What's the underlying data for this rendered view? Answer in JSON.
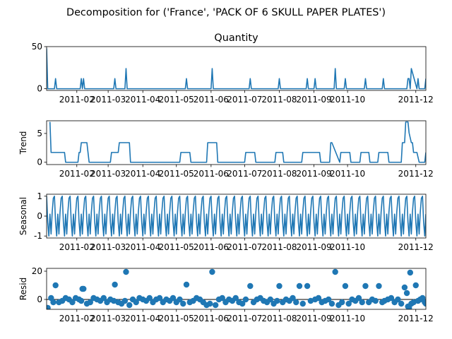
{
  "figure": {
    "suptitle": "Decomposition for ('France', 'PACK OF 6 SKULL PAPER PLATES')",
    "line_color": "#1f77b4",
    "dot_color": "#1f77b4"
  },
  "chart_data": [
    {
      "type": "line",
      "title": "Quantity",
      "ylabel": "",
      "ylim": [
        -2,
        50
      ],
      "yticks": [
        0,
        50
      ],
      "xlim": [
        "2011-01-05",
        "2011-12-10"
      ],
      "xticks": [
        "2011-02",
        "2011-03",
        "2011-04",
        "2011-05",
        "2011-06",
        "2011-07",
        "2011-08",
        "2011-09",
        "2011-10",
        "2011-12"
      ],
      "series": [
        {
          "x": [
            "2011-01-05",
            "2011-01-06",
            "2011-01-12",
            "2011-01-13",
            "2011-01-14",
            "2011-02-04",
            "2011-02-05",
            "2011-02-06",
            "2011-02-07",
            "2011-02-08",
            "2011-03-06",
            "2011-03-07",
            "2011-03-08",
            "2011-03-16",
            "2011-03-17",
            "2011-03-18",
            "2011-05-09",
            "2011-05-10",
            "2011-05-11",
            "2011-06-01",
            "2011-06-02",
            "2011-06-03",
            "2011-07-05",
            "2011-07-06",
            "2011-07-07",
            "2011-07-31",
            "2011-08-01",
            "2011-08-02",
            "2011-08-25",
            "2011-08-26",
            "2011-08-27",
            "2011-09-01",
            "2011-09-02",
            "2011-09-03",
            "2011-09-19",
            "2011-09-20",
            "2011-09-21",
            "2011-09-28",
            "2011-09-29",
            "2011-09-30",
            "2011-10-16",
            "2011-10-17",
            "2011-10-18",
            "2011-11-01",
            "2011-11-02",
            "2011-11-03",
            "2011-11-23",
            "2011-11-24",
            "2011-11-25",
            "2011-11-26",
            "2011-11-27",
            "2011-12-02",
            "2011-12-03",
            "2011-12-04",
            "2011-12-09",
            "2011-12-10"
          ],
          "values": [
            48,
            0,
            0,
            12,
            0,
            0,
            12,
            0,
            12,
            0,
            0,
            12,
            0,
            0,
            24,
            0,
            0,
            12,
            0,
            0,
            24,
            0,
            0,
            12,
            0,
            0,
            12,
            0,
            0,
            12,
            0,
            0,
            12,
            0,
            0,
            24,
            0,
            0,
            12,
            0,
            0,
            12,
            0,
            0,
            12,
            0,
            0,
            12,
            12,
            0,
            24,
            0,
            12,
            0,
            0,
            12
          ]
        }
      ]
    },
    {
      "type": "line",
      "title": "",
      "ylabel": "Trend",
      "ylim": [
        -0.4,
        7.2
      ],
      "yticks": [
        0,
        5
      ],
      "xlim": [
        "2011-01-05",
        "2011-12-10"
      ],
      "xticks": [
        "2011-02",
        "2011-03",
        "2011-04",
        "2011-05",
        "2011-06",
        "2011-07",
        "2011-08",
        "2011-09",
        "2011-10",
        "2011-12"
      ],
      "series": [
        {
          "x": [
            "2011-01-08",
            "2011-01-09",
            "2011-01-11",
            "2011-01-12",
            "2011-01-21",
            "2011-01-22",
            "2011-02-02",
            "2011-02-03",
            "2011-02-04",
            "2011-02-05",
            "2011-02-10",
            "2011-02-11",
            "2011-02-12",
            "2011-03-03",
            "2011-03-04",
            "2011-03-10",
            "2011-03-11",
            "2011-03-12",
            "2011-03-20",
            "2011-03-21",
            "2011-03-22",
            "2011-05-04",
            "2011-05-05",
            "2011-05-13",
            "2011-05-14",
            "2011-05-28",
            "2011-05-29",
            "2011-06-06",
            "2011-06-07",
            "2011-07-01",
            "2011-07-02",
            "2011-07-10",
            "2011-07-11",
            "2011-07-28",
            "2011-07-29",
            "2011-08-04",
            "2011-08-05",
            "2011-08-21",
            "2011-08-22",
            "2011-09-06",
            "2011-09-07",
            "2011-09-15",
            "2011-09-16",
            "2011-09-17",
            "2011-09-24",
            "2011-09-25",
            "2011-10-03",
            "2011-10-04",
            "2011-10-12",
            "2011-10-13",
            "2011-10-20",
            "2011-10-21",
            "2011-10-28",
            "2011-10-29",
            "2011-11-06",
            "2011-11-07",
            "2011-11-18",
            "2011-11-19",
            "2011-11-21",
            "2011-11-22",
            "2011-11-24",
            "2011-11-25",
            "2011-11-27",
            "2011-11-28",
            "2011-11-29",
            "2011-12-01",
            "2011-12-02",
            "2011-12-04",
            "2011-12-05",
            "2011-12-09",
            "2011-12-10"
          ],
          "values": [
            7,
            1.7,
            1.7,
            1.7,
            1.7,
            0,
            0,
            1.7,
            1.7,
            3.4,
            3.4,
            1.7,
            0,
            0,
            1.7,
            1.7,
            3.4,
            3.4,
            3.4,
            0,
            0,
            0,
            1.7,
            1.7,
            0,
            0,
            3.4,
            3.4,
            0,
            0,
            1.7,
            1.7,
            0,
            0,
            1.7,
            1.7,
            0,
            0,
            1.7,
            1.7,
            0,
            0,
            3.4,
            3.4,
            0,
            1.7,
            1.7,
            0,
            0,
            1.7,
            1.7,
            0,
            0,
            1.7,
            1.7,
            0,
            0,
            3.4,
            3.4,
            7,
            7,
            5.1,
            3.4,
            3.4,
            1.7,
            1.7,
            1.7,
            0,
            0,
            0,
            1.7
          ]
        }
      ]
    },
    {
      "type": "line",
      "title": "",
      "ylabel": "Seasonal",
      "ylim": [
        -1.1,
        1.1
      ],
      "yticks": [
        -1,
        0,
        1
      ],
      "xlim": [
        "2011-01-05",
        "2011-12-10"
      ],
      "xticks": [
        "2011-02",
        "2011-03",
        "2011-04",
        "2011-05",
        "2011-06",
        "2011-07",
        "2011-08",
        "2011-09",
        "2011-10",
        "2011-12"
      ],
      "period_days": 7,
      "start": "2011-01-05",
      "series": [
        {
          "values": [
            1,
            -0.3,
            -1,
            0.1,
            -0.9,
            0.2,
            0.9
          ]
        }
      ]
    },
    {
      "type": "scatter",
      "title": "",
      "ylabel": "Resid",
      "ylim": [
        -7,
        22
      ],
      "yticks": [
        0,
        20
      ],
      "baseline": 0,
      "xlim": [
        "2011-01-05",
        "2011-12-10"
      ],
      "xticks": [
        "2011-02",
        "2011-03",
        "2011-04",
        "2011-05",
        "2011-06",
        "2011-07",
        "2011-08",
        "2011-09",
        "2011-10",
        "2011-12"
      ],
      "series": [
        {
          "x": [
            "2011-01-05",
            "2011-01-06",
            "2011-01-09",
            "2011-01-11",
            "2011-01-13",
            "2011-01-16",
            "2011-01-19",
            "2011-01-22",
            "2011-01-25",
            "2011-01-28",
            "2011-01-31",
            "2011-02-03",
            "2011-02-05",
            "2011-02-06",
            "2011-02-07",
            "2011-02-10",
            "2011-02-13",
            "2011-02-16",
            "2011-02-19",
            "2011-02-22",
            "2011-02-25",
            "2011-02-28",
            "2011-03-03",
            "2011-03-06",
            "2011-03-07",
            "2011-03-10",
            "2011-03-13",
            "2011-03-16",
            "2011-03-17",
            "2011-03-20",
            "2011-03-23",
            "2011-03-26",
            "2011-03-29",
            "2011-04-01",
            "2011-04-04",
            "2011-04-07",
            "2011-04-10",
            "2011-04-13",
            "2011-04-16",
            "2011-04-19",
            "2011-04-22",
            "2011-04-25",
            "2011-04-28",
            "2011-05-01",
            "2011-05-04",
            "2011-05-07",
            "2011-05-10",
            "2011-05-13",
            "2011-05-16",
            "2011-05-19",
            "2011-05-22",
            "2011-05-25",
            "2011-05-28",
            "2011-05-31",
            "2011-06-02",
            "2011-06-05",
            "2011-06-08",
            "2011-06-11",
            "2011-06-14",
            "2011-06-17",
            "2011-06-20",
            "2011-06-23",
            "2011-06-26",
            "2011-06-29",
            "2011-07-02",
            "2011-07-06",
            "2011-07-09",
            "2011-07-12",
            "2011-07-15",
            "2011-07-18",
            "2011-07-21",
            "2011-07-24",
            "2011-07-27",
            "2011-07-30",
            "2011-08-01",
            "2011-08-04",
            "2011-08-07",
            "2011-08-10",
            "2011-08-13",
            "2011-08-16",
            "2011-08-19",
            "2011-08-22",
            "2011-08-26",
            "2011-08-29",
            "2011-09-02",
            "2011-09-05",
            "2011-09-08",
            "2011-09-11",
            "2011-09-14",
            "2011-09-17",
            "2011-09-20",
            "2011-09-23",
            "2011-09-26",
            "2011-09-29",
            "2011-10-02",
            "2011-10-05",
            "2011-10-08",
            "2011-10-11",
            "2011-10-14",
            "2011-10-17",
            "2011-10-20",
            "2011-10-23",
            "2011-10-26",
            "2011-10-29",
            "2011-11-01",
            "2011-11-03",
            "2011-11-06",
            "2011-11-09",
            "2011-11-12",
            "2011-11-15",
            "2011-11-18",
            "2011-11-21",
            "2011-11-23",
            "2011-11-24",
            "2011-11-25",
            "2011-11-26",
            "2011-11-27",
            "2011-11-29",
            "2011-12-01",
            "2011-12-03",
            "2011-12-05",
            "2011-12-07",
            "2011-12-09",
            "2011-12-10"
          ],
          "values": [
            -6,
            -6,
            1,
            -2,
            10,
            -2,
            -1,
            1,
            0,
            -2,
            1,
            0,
            -1,
            7.5,
            7.5,
            -3,
            -2,
            1,
            0,
            -1,
            1,
            -2,
            0,
            -1,
            10.5,
            -2,
            -3,
            -1,
            19.5,
            -4,
            0,
            -2,
            1,
            0,
            -1,
            1,
            -2,
            0,
            1,
            -2,
            0,
            -1,
            1,
            -2,
            0,
            -3,
            10.5,
            -2,
            -1,
            1,
            0,
            -2,
            -4,
            -3,
            19.5,
            -4,
            0,
            1,
            -2,
            0,
            -1,
            1,
            -2,
            -3,
            0,
            9.5,
            -2,
            0,
            1,
            -1,
            -2,
            0,
            -3,
            -1,
            9.5,
            -2,
            0,
            -1,
            1,
            -2,
            9.5,
            -3,
            9.5,
            -1,
            0,
            1,
            -2,
            -1,
            0,
            -3,
            19.5,
            -4,
            -2,
            9.5,
            -3,
            0,
            -1,
            1,
            -2,
            9.5,
            -2,
            0,
            -1,
            9.5,
            -2,
            -1,
            0,
            1,
            -2,
            0,
            -3,
            8.5,
            4.5,
            -5,
            -6,
            19,
            -3,
            -2,
            10,
            -1,
            0,
            1,
            -2,
            -3
          ]
        }
      ]
    }
  ]
}
